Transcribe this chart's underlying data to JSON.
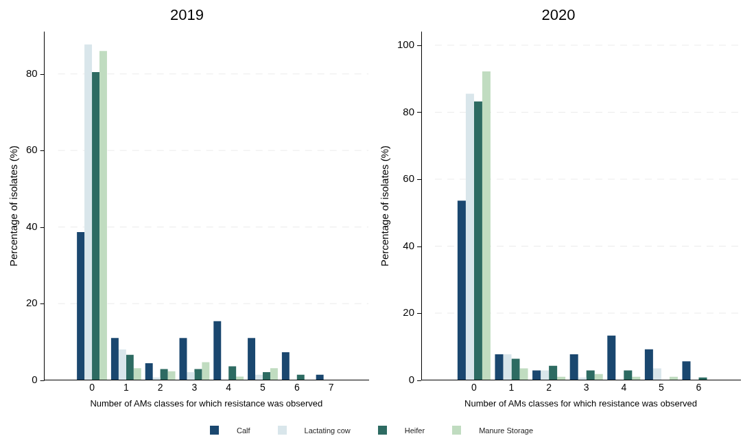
{
  "chart_data": [
    {
      "type": "bar",
      "title": "2019",
      "xlabel": "Number of AMs classes for which resistance was observed",
      "ylabel": "Percentage of isolates (%)",
      "categories": [
        "0",
        "1",
        "2",
        "3",
        "4",
        "5",
        "6",
        "7"
      ],
      "series": [
        {
          "name": "Calf",
          "color": "#1a476f",
          "values": [
            38.7,
            11.0,
            4.4,
            11.0,
            15.4,
            11.0,
            7.3,
            1.4
          ]
        },
        {
          "name": "Lactating cow",
          "color": "#d9e6eb",
          "values": [
            87.7,
            8.0,
            0.7,
            2.1,
            0,
            1.4,
            0,
            0
          ]
        },
        {
          "name": "Heifer",
          "color": "#2d6b62",
          "values": [
            80.5,
            6.6,
            2.9,
            2.9,
            3.6,
            2.1,
            1.4,
            0
          ]
        },
        {
          "name": "Manure Storage",
          "color": "#c0dcc0",
          "values": [
            86.0,
            3.1,
            2.3,
            4.7,
            0.9,
            3.1,
            0,
            0
          ]
        }
      ],
      "ylim": [
        0,
        91
      ],
      "yticks": [
        0,
        20,
        40,
        60,
        80
      ],
      "grid": "y",
      "legend": "bottom"
    },
    {
      "type": "bar",
      "title": "2020",
      "xlabel": "Number of AMs classes for which resistance was observed",
      "ylabel": "Percentage of isolates (%)",
      "categories": [
        "0",
        "1",
        "2",
        "3",
        "4",
        "5",
        "6"
      ],
      "series": [
        {
          "color": "#1a476f",
          "values": [
            53.6,
            7.7,
            2.9,
            7.7,
            13.3,
            9.2,
            5.6
          ]
        },
        {
          "color": "#d9e6eb",
          "values": [
            85.5,
            7.7,
            2.9,
            0.8,
            0,
            3.5,
            0
          ]
        },
        {
          "color": "#2d6b62",
          "values": [
            83.2,
            6.4,
            4.3,
            2.9,
            2.9,
            0,
            0.8
          ]
        },
        {
          "color": "#c0dcc0",
          "values": [
            92.2,
            3.5,
            1.0,
            1.8,
            1.0,
            1.0,
            0
          ]
        }
      ],
      "ylim": [
        0,
        104
      ],
      "yticks": [
        0,
        20,
        40,
        60,
        80,
        100
      ],
      "grid": "y"
    }
  ]
}
